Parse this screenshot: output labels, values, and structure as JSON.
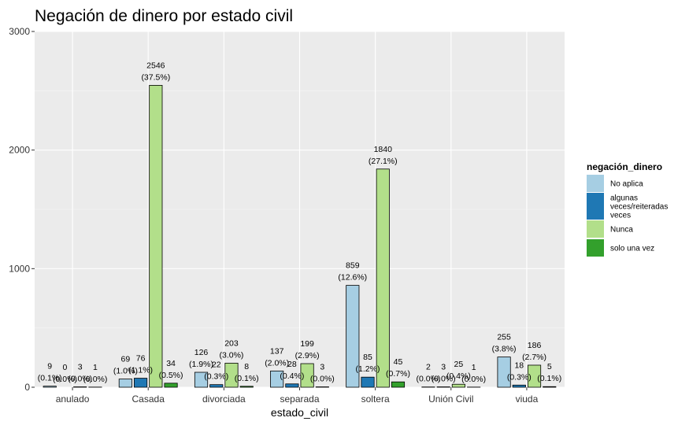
{
  "chart_data": {
    "type": "bar",
    "title": "Negación de dinero por estado civil",
    "xlabel": "estado_civil",
    "ylabel": "",
    "ylim": [
      0,
      3000
    ],
    "yticks": [
      0,
      1000,
      2000,
      3000
    ],
    "grid": true,
    "legend_position": "right",
    "legend_title": "negación_dinero",
    "categories": [
      "anulado",
      "Casada",
      "divorciada",
      "separada",
      "soltera",
      "Unión Civil",
      "viuda"
    ],
    "series": [
      {
        "name": "No aplica",
        "color": "#a6cee3",
        "legend_lines": [
          " No aplica"
        ],
        "values": [
          9,
          69,
          126,
          137,
          859,
          2,
          255
        ],
        "pct": [
          "(0.1%)",
          "(1.0%)",
          "(1.9%)",
          "(2.0%)",
          "(12.6%)",
          "(0.0%)",
          "(3.8%)"
        ]
      },
      {
        "name": "algunas veces/reiteradas veces",
        "color": "#1f78b4",
        "legend_lines": [
          "algunas",
          "veces/reiteradas",
          "veces"
        ],
        "values": [
          0,
          76,
          22,
          28,
          85,
          3,
          18
        ],
        "pct": [
          "(0.0%)",
          "(1.1%)",
          "(0.3%)",
          "(0.4%)",
          "(1.2%)",
          "(0.0%)",
          "(0.3%)"
        ]
      },
      {
        "name": "Nunca",
        "color": "#b2df8a",
        "legend_lines": [
          "Nunca"
        ],
        "values": [
          3,
          2546,
          203,
          199,
          1840,
          25,
          186
        ],
        "pct": [
          "(0.0%)",
          "(37.5%)",
          "(3.0%)",
          "(2.9%)",
          "(27.1%)",
          "(0.4%)",
          "(2.7%)"
        ]
      },
      {
        "name": "solo una vez",
        "color": "#33a02c",
        "legend_lines": [
          "solo una vez"
        ],
        "values": [
          1,
          34,
          8,
          3,
          45,
          1,
          5
        ],
        "pct": [
          "(0.0%)",
          "(0.5%)",
          "(0.1%)",
          "(0.0%)",
          "(0.7%)",
          "(0.0%)",
          "(0.1%)"
        ]
      }
    ]
  }
}
